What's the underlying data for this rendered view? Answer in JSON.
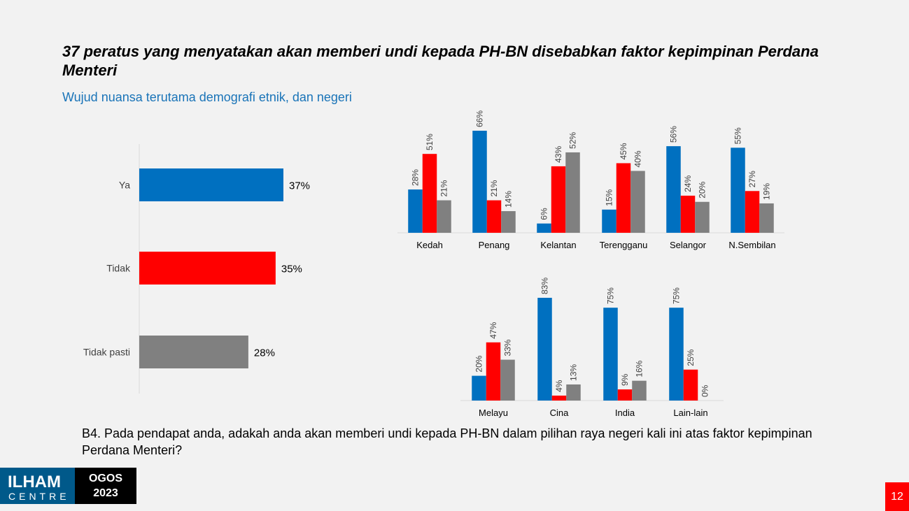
{
  "title": "37 peratus yang menyatakan akan memberi undi kepada PH-BN disebabkan faktor kepimpinan Perdana Menteri",
  "subtitle": "Wujud nuansa terutama demografi etnik, dan negeri",
  "question": "B4. Pada pendapat anda, adakah anda akan memberi undi kepada PH-BN dalam pilihan raya negeri kali ini atas faktor kepimpinan Perdana Menteri?",
  "logo": {
    "main": "ILHAM",
    "sub": "CENTRE"
  },
  "date": {
    "month": "OGOS",
    "year": "2023"
  },
  "page_number": "12",
  "colors": {
    "ya": "#0070c0",
    "tidak": "#ff0000",
    "tidak_pasti": "#808080",
    "accent": "#1a74b8"
  },
  "chart_data": [
    {
      "type": "bar",
      "orientation": "horizontal",
      "categories": [
        "Ya",
        "Tidak",
        "Tidak pasti"
      ],
      "values": [
        37,
        35,
        28
      ],
      "value_labels": [
        "37%",
        "35%",
        "28%"
      ],
      "colors": [
        "#0070c0",
        "#ff0000",
        "#808080"
      ]
    },
    {
      "type": "bar",
      "categories": [
        "Kedah",
        "Penang",
        "Kelantan",
        "Terengganu",
        "Selangor",
        "N.Sembilan"
      ],
      "series": [
        {
          "values": [
            28,
            66,
            6,
            15,
            56,
            55
          ],
          "labels": [
            "28%",
            "66%",
            "6%",
            "15%",
            "56%",
            "55%"
          ],
          "color": "#0070c0"
        },
        {
          "values": [
            51,
            21,
            43,
            45,
            24,
            27
          ],
          "labels": [
            "51%",
            "21%",
            "43%",
            "45%",
            "24%",
            "27%"
          ],
          "color": "#ff0000"
        },
        {
          "values": [
            21,
            14,
            52,
            40,
            20,
            19
          ],
          "labels": [
            "21%",
            "14%",
            "52%",
            "40%",
            "20%",
            "19%"
          ],
          "color": "#808080"
        }
      ]
    },
    {
      "type": "bar",
      "categories": [
        "Melayu",
        "Cina",
        "India",
        "Lain-lain"
      ],
      "series": [
        {
          "values": [
            20,
            83,
            75,
            75
          ],
          "labels": [
            "20%",
            "83%",
            "75%",
            "75%"
          ],
          "color": "#0070c0"
        },
        {
          "values": [
            47,
            4,
            9,
            25
          ],
          "labels": [
            "47%",
            "4%",
            "9%",
            "25%"
          ],
          "color": "#ff0000"
        },
        {
          "values": [
            33,
            13,
            16,
            0
          ],
          "labels": [
            "33%",
            "13%",
            "16%",
            "0%"
          ],
          "color": "#808080"
        }
      ]
    }
  ]
}
